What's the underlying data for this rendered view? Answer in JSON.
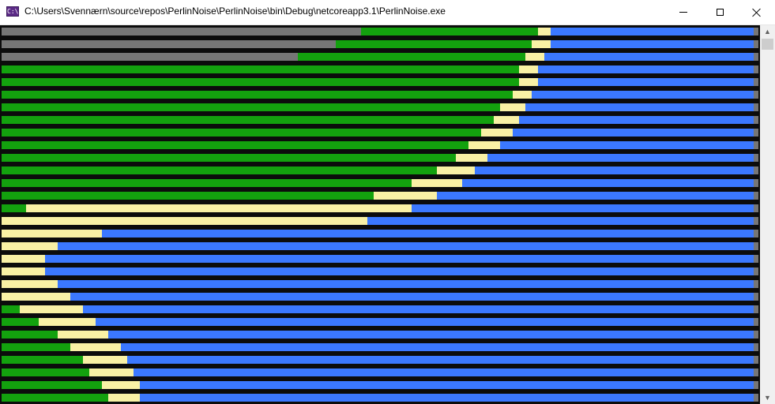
{
  "window": {
    "title": "C:\\Users\\Svennærn\\source\\repos\\PerlinNoise\\PerlinNoise\\bin\\Debug\\netcoreapp3.1\\PerlinNoise.exe",
    "icon": "console-app-icon",
    "icon_text": "C:\\"
  },
  "controls": {
    "minimize": "minimize-icon",
    "maximize": "maximize-icon",
    "close": "close-icon"
  },
  "scrollbar": {
    "up": "▲",
    "down": "▼"
  },
  "colors": {
    "gray": "#767676",
    "green": "#13a10e",
    "yellow": "#f9f1a5",
    "blue": "#3b78ff",
    "end": "#767676"
  },
  "rows": [
    [
      [
        "gray",
        455
      ],
      [
        "green",
        224
      ],
      [
        "yellow",
        16
      ],
      [
        "blue",
        257
      ],
      [
        "end",
        6
      ]
    ],
    [
      [
        "gray",
        423
      ],
      [
        "green",
        248
      ],
      [
        "yellow",
        24
      ],
      [
        "blue",
        257
      ],
      [
        "end",
        6
      ]
    ],
    [
      [
        "gray",
        375
      ],
      [
        "green",
        288
      ],
      [
        "yellow",
        24
      ],
      [
        "blue",
        265
      ],
      [
        "end",
        6
      ]
    ],
    [
      [
        "green",
        655
      ],
      [
        "yellow",
        24
      ],
      [
        "blue",
        273
      ],
      [
        "end",
        6
      ]
    ],
    [
      [
        "green",
        655
      ],
      [
        "yellow",
        24
      ],
      [
        "blue",
        273
      ],
      [
        "end",
        6
      ]
    ],
    [
      [
        "green",
        647
      ],
      [
        "yellow",
        24
      ],
      [
        "blue",
        281
      ],
      [
        "end",
        6
      ]
    ],
    [
      [
        "green",
        631
      ],
      [
        "yellow",
        32
      ],
      [
        "blue",
        289
      ],
      [
        "end",
        6
      ]
    ],
    [
      [
        "green",
        623
      ],
      [
        "yellow",
        32
      ],
      [
        "blue",
        297
      ],
      [
        "end",
        6
      ]
    ],
    [
      [
        "green",
        607
      ],
      [
        "yellow",
        40
      ],
      [
        "blue",
        305
      ],
      [
        "end",
        6
      ]
    ],
    [
      [
        "green",
        591
      ],
      [
        "yellow",
        40
      ],
      [
        "blue",
        321
      ],
      [
        "end",
        6
      ]
    ],
    [
      [
        "green",
        575
      ],
      [
        "yellow",
        40
      ],
      [
        "blue",
        337
      ],
      [
        "end",
        6
      ]
    ],
    [
      [
        "green",
        551
      ],
      [
        "yellow",
        48
      ],
      [
        "blue",
        353
      ],
      [
        "end",
        6
      ]
    ],
    [
      [
        "green",
        519
      ],
      [
        "yellow",
        64
      ],
      [
        "blue",
        369
      ],
      [
        "end",
        6
      ]
    ],
    [
      [
        "green",
        471
      ],
      [
        "yellow",
        80
      ],
      [
        "blue",
        401
      ],
      [
        "end",
        6
      ]
    ],
    [
      [
        "green",
        31
      ],
      [
        "yellow",
        488
      ],
      [
        "blue",
        433
      ],
      [
        "end",
        6
      ]
    ],
    [
      [
        "yellow",
        463
      ],
      [
        "blue",
        489
      ],
      [
        "end",
        6
      ]
    ],
    [
      [
        "yellow",
        127
      ],
      [
        "blue",
        825
      ],
      [
        "end",
        6
      ]
    ],
    [
      [
        "yellow",
        71
      ],
      [
        "blue",
        881
      ],
      [
        "end",
        6
      ]
    ],
    [
      [
        "yellow",
        55
      ],
      [
        "blue",
        897
      ],
      [
        "end",
        6
      ]
    ],
    [
      [
        "yellow",
        55
      ],
      [
        "blue",
        897
      ],
      [
        "end",
        6
      ]
    ],
    [
      [
        "yellow",
        71
      ],
      [
        "blue",
        881
      ],
      [
        "end",
        6
      ]
    ],
    [
      [
        "yellow",
        87
      ],
      [
        "blue",
        865
      ],
      [
        "end",
        6
      ]
    ],
    [
      [
        "green",
        23
      ],
      [
        "yellow",
        80
      ],
      [
        "blue",
        849
      ],
      [
        "end",
        6
      ]
    ],
    [
      [
        "green",
        47
      ],
      [
        "yellow",
        72
      ],
      [
        "blue",
        833
      ],
      [
        "end",
        6
      ]
    ],
    [
      [
        "green",
        71
      ],
      [
        "yellow",
        64
      ],
      [
        "blue",
        817
      ],
      [
        "end",
        6
      ]
    ],
    [
      [
        "green",
        87
      ],
      [
        "yellow",
        64
      ],
      [
        "blue",
        801
      ],
      [
        "end",
        6
      ]
    ],
    [
      [
        "green",
        103
      ],
      [
        "yellow",
        56
      ],
      [
        "blue",
        793
      ],
      [
        "end",
        6
      ]
    ],
    [
      [
        "green",
        111
      ],
      [
        "yellow",
        56
      ],
      [
        "blue",
        785
      ],
      [
        "end",
        6
      ]
    ],
    [
      [
        "green",
        127
      ],
      [
        "yellow",
        48
      ],
      [
        "blue",
        777
      ],
      [
        "end",
        6
      ]
    ],
    [
      [
        "green",
        135
      ],
      [
        "yellow",
        40
      ],
      [
        "blue",
        777
      ],
      [
        "end",
        6
      ]
    ]
  ]
}
